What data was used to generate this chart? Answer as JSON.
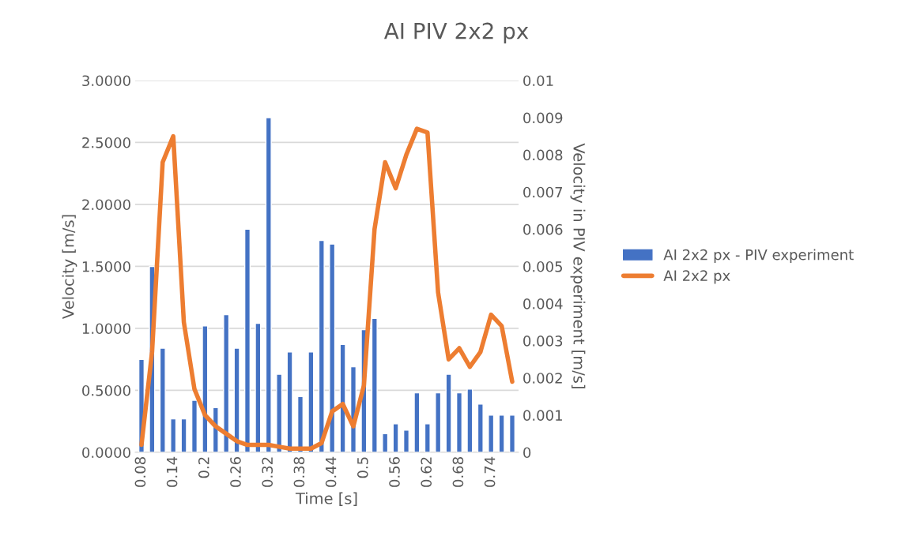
{
  "chart_data": {
    "type": "bar",
    "title": "AI PIV 2x2 px",
    "xlabel": "Time [s]",
    "ylabel": "Velocity [m/s]",
    "y2label": "Velocity in PIV experiment [m/s]",
    "categories": [
      "0.08",
      null,
      null,
      "0.14",
      null,
      null,
      "0.2",
      null,
      null,
      "0.26",
      null,
      null,
      "0.32",
      null,
      null,
      "0.38",
      null,
      null,
      "0.44",
      null,
      null,
      "0.5",
      null,
      null,
      "0.56",
      null,
      null,
      "0.62",
      null,
      null,
      "0.68",
      null,
      null,
      "0.74",
      null,
      null
    ],
    "series": [
      {
        "name": "AI 2x2 px - PIV experiment",
        "color": "#4472c4",
        "values": [
          0.75,
          1.5,
          0.84,
          0.27,
          0.27,
          0.42,
          1.02,
          0.36,
          1.11,
          0.84,
          1.8,
          1.04,
          2.7,
          0.63,
          0.81,
          0.45,
          0.81,
          1.71,
          1.68,
          0.87,
          0.69,
          0.99,
          1.08,
          0.15,
          0.23,
          0.18,
          0.48,
          0.23,
          0.48,
          0.63,
          0.48,
          0.51,
          0.39,
          0.3,
          0.3,
          0.3
        ]
      },
      {
        "name": "AI 2x2 px",
        "type": "line",
        "axis": "y2",
        "color": "#ed7d31",
        "values": [
          0.0002,
          0.0027,
          0.0078,
          0.0085,
          0.0035,
          0.0017,
          0.001,
          0.0007,
          0.0005,
          0.0003,
          0.0002,
          0.0002,
          0.0002,
          0.00015,
          0.0001,
          0.0001,
          0.0001,
          0.00025,
          0.0011,
          0.0013,
          0.0007,
          0.0018,
          0.006,
          0.0078,
          0.0071,
          0.008,
          0.0087,
          0.0086,
          0.0043,
          0.0025,
          0.0028,
          0.0023,
          0.0027,
          0.0037,
          0.0034,
          0.0019
        ]
      }
    ],
    "ylim": [
      0,
      3
    ],
    "yticks": [
      {
        "value": 0,
        "label": "0.0000"
      },
      {
        "value": 0.5,
        "label": "0.5000"
      },
      {
        "value": 1,
        "label": "1.0000"
      },
      {
        "value": 1.5,
        "label": "1.5000"
      },
      {
        "value": 2,
        "label": "2.0000"
      },
      {
        "value": 2.5,
        "label": "2.5000"
      },
      {
        "value": 3,
        "label": "3.0000"
      }
    ],
    "y2lim": [
      0,
      0.01
    ],
    "y2ticks": [
      0,
      0.001,
      0.002,
      0.003,
      0.004,
      0.005,
      0.006,
      0.007,
      0.008,
      0.009,
      0.01
    ],
    "grid": "y",
    "legend": "right",
    "line_style": "solid",
    "marker": "none"
  }
}
